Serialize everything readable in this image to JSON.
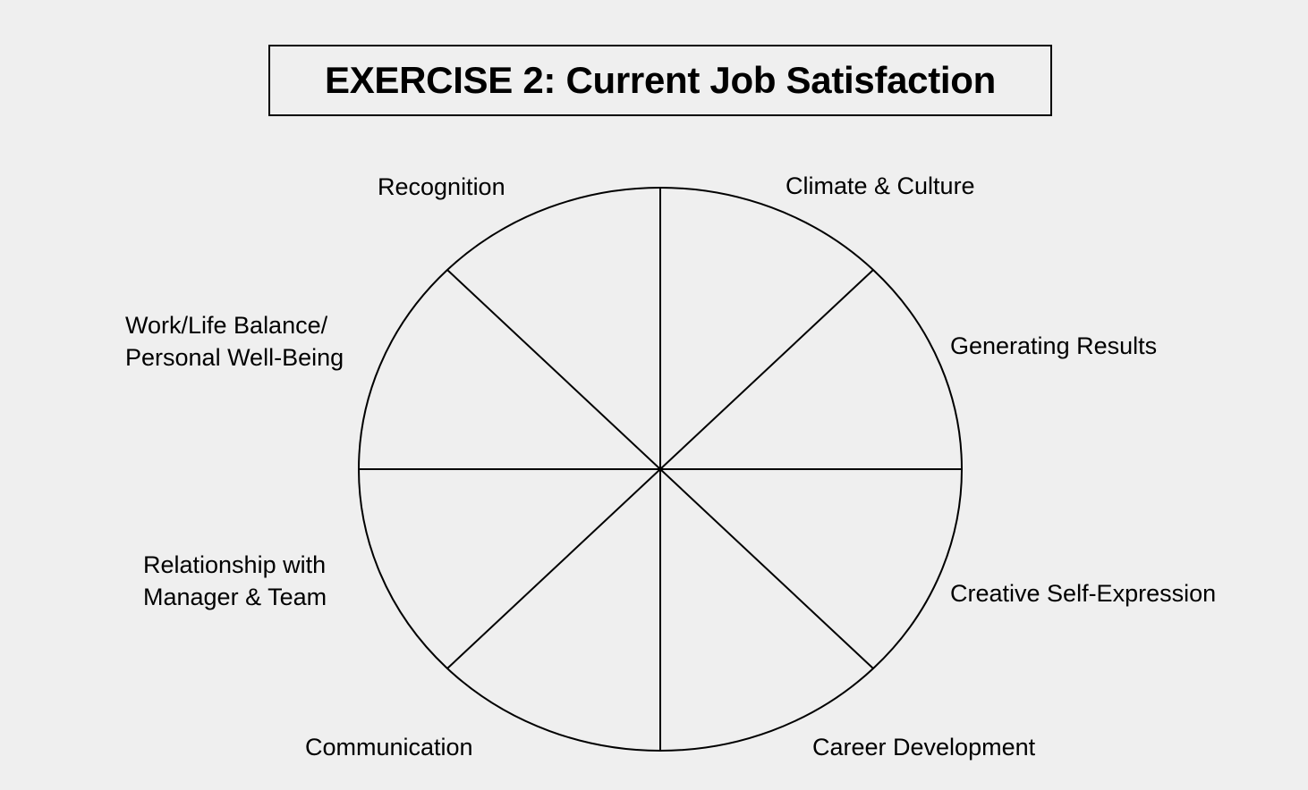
{
  "title": "EXERCISE 2: Current Job Satisfaction",
  "wheel": {
    "segments": [
      {
        "id": "recognition",
        "lines": [
          "Recognition"
        ]
      },
      {
        "id": "climate-culture",
        "lines": [
          "Climate & Culture"
        ]
      },
      {
        "id": "generating-results",
        "lines": [
          "Generating Results"
        ]
      },
      {
        "id": "creative-self-expression",
        "lines": [
          "Creative Self-Expression"
        ]
      },
      {
        "id": "career-development",
        "lines": [
          "Career Development"
        ]
      },
      {
        "id": "communication",
        "lines": [
          "Communication"
        ]
      },
      {
        "id": "relationship-manager-team",
        "lines": [
          "Relationship with",
          "Manager & Team"
        ]
      },
      {
        "id": "work-life-balance",
        "lines": [
          "Work/Life Balance/",
          "Personal Well-Being"
        ]
      }
    ]
  },
  "colors": {
    "background": "#efefef",
    "ink": "#000000"
  }
}
